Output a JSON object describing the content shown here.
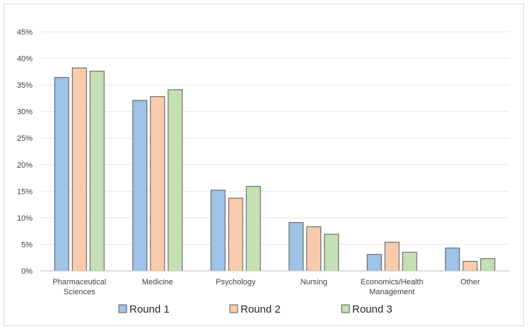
{
  "chart_data": {
    "type": "bar",
    "categories": [
      [
        "Pharmaceutical",
        "Sciences"
      ],
      [
        "Medicine"
      ],
      [
        "Psychology"
      ],
      [
        "Nursing"
      ],
      [
        "Economics/Health",
        "Management"
      ],
      [
        "Other"
      ]
    ],
    "series": [
      {
        "name": "Round 1",
        "color": "#9dc3e6",
        "values": [
          36.4,
          32.1,
          15.2,
          9.1,
          3.1,
          4.3
        ]
      },
      {
        "name": "Round 2",
        "color": "#f8cbad",
        "values": [
          38.2,
          32.8,
          13.7,
          8.3,
          5.4,
          1.8
        ]
      },
      {
        "name": "Round 3",
        "color": "#c5e0b4",
        "values": [
          37.6,
          34.1,
          15.9,
          6.9,
          3.5,
          2.3
        ]
      }
    ],
    "ylim": [
      0,
      45
    ],
    "yticks": [
      "0%",
      "5%",
      "10%",
      "15%",
      "20%",
      "25%",
      "30%",
      "35%",
      "40%",
      "45%"
    ],
    "grid": true,
    "legend": "bottom",
    "bar_outline_color": "#595959",
    "grid_color": "#e7e7e7",
    "axis_color": "#bfbfbf"
  }
}
